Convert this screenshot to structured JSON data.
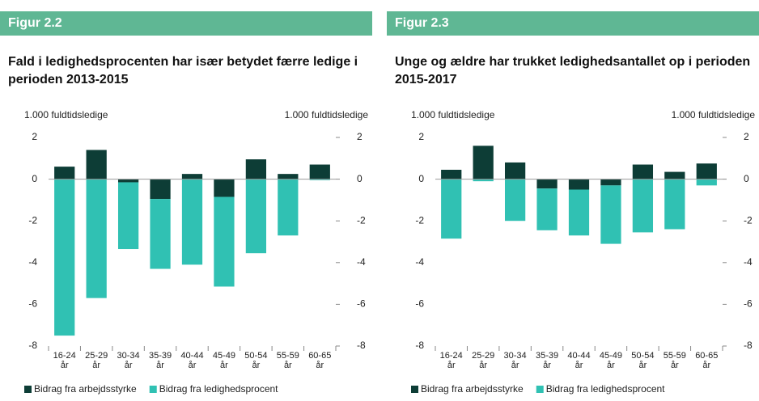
{
  "chart_data": [
    {
      "type": "stacked_bar",
      "header": "Figur 2.2",
      "title": "Fald i ledighedsprocenten har især betydet færre ledige i perioden 2013-2015",
      "y_label": "1.000 fuldtidsledige",
      "y2_label": "1.000 fuldtidsledige",
      "categories": [
        "16-24 år",
        "25-29 år",
        "30-34 år",
        "35-39 år",
        "40-44 år",
        "45-49 år",
        "50-54 år",
        "55-59 år",
        "60-65 år"
      ],
      "series": [
        {
          "name": "Bidrag fra arbejdsstyrke",
          "color": "#0d3d36",
          "values": [
            0.6,
            1.4,
            -0.15,
            -0.95,
            0.25,
            -0.85,
            0.95,
            0.25,
            0.7
          ]
        },
        {
          "name": "Bidrag fra ledighedsprocent",
          "color": "#30c1b3",
          "values": [
            -7.5,
            -5.7,
            -3.2,
            -3.35,
            -4.1,
            -4.3,
            -3.55,
            -2.7,
            -0.05
          ]
        }
      ],
      "ylim": [
        -8,
        2
      ],
      "yticks": [
        -8,
        -6,
        -4,
        -2,
        0,
        2
      ],
      "y2lim": [
        -8,
        2
      ],
      "y2ticks": [
        -8,
        -6,
        -4,
        -2,
        0,
        2
      ]
    },
    {
      "type": "stacked_bar",
      "header": "Figur 2.3",
      "title": "Unge og ældre har trukket ledighedsantallet op i perioden 2015-2017",
      "y_label": "1.000 fuldtidsledige",
      "y2_label": "1.000 fuldtidsledige",
      "categories": [
        "16-24 år",
        "25-29 år",
        "30-34 år",
        "35-39 år",
        "40-44 år",
        "45-49 år",
        "50-54 år",
        "55-59 år",
        "60-65 år"
      ],
      "series": [
        {
          "name": "Bidrag fra arbejdsstyrke",
          "color": "#0d3d36",
          "values": [
            0.45,
            1.6,
            0.8,
            -0.45,
            -0.5,
            -0.3,
            0.7,
            0.35,
            0.75
          ]
        },
        {
          "name": "Bidrag fra ledighedsprocent",
          "color": "#30c1b3",
          "values": [
            -2.85,
            -0.1,
            -2.0,
            -2.0,
            -2.2,
            -2.8,
            -2.55,
            -2.4,
            -0.3
          ]
        }
      ],
      "ylim": [
        -8,
        2
      ],
      "yticks": [
        -8,
        -6,
        -4,
        -2,
        0,
        2
      ],
      "y2lim": [
        -8,
        2
      ],
      "y2ticks": [
        -8,
        -6,
        -4,
        -2,
        0,
        2
      ]
    }
  ]
}
